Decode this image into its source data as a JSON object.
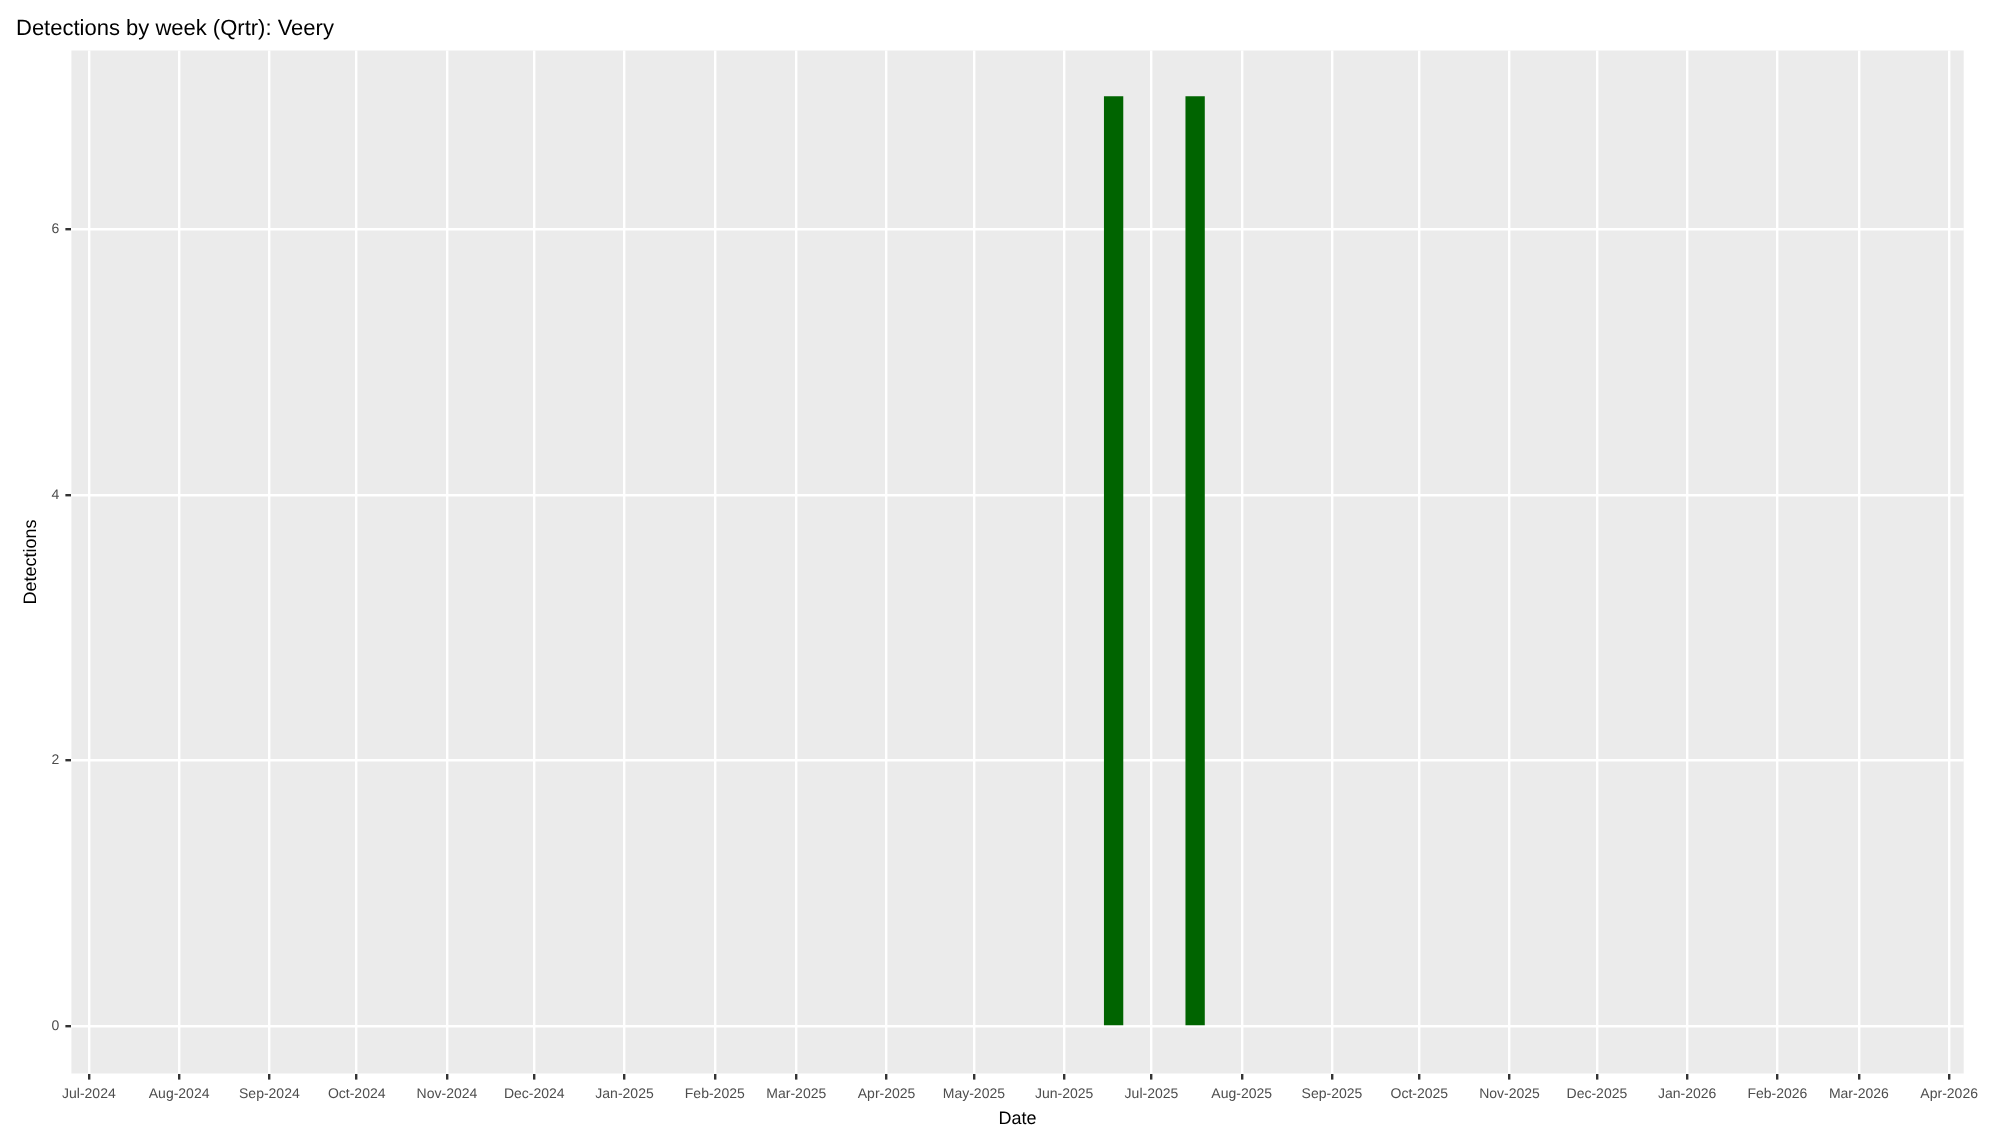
{
  "chart_data": {
    "type": "bar",
    "title": "Detections by week (Qrtr): Veery",
    "xlabel": "Date",
    "ylabel": "Detections",
    "x": [
      "2025-06-18",
      "2025-07-16"
    ],
    "series": [
      {
        "color": "#006400",
        "values": [
          7,
          7
        ]
      }
    ],
    "xlim": [
      "2024-06-25",
      "2026-04-06"
    ],
    "xticks": [
      {
        "value": "2024-07-01",
        "label": "Jul-2024"
      },
      {
        "value": "2024-08-01",
        "label": "Aug-2024"
      },
      {
        "value": "2024-09-01",
        "label": "Sep-2024"
      },
      {
        "value": "2024-10-01",
        "label": "Oct-2024"
      },
      {
        "value": "2024-11-01",
        "label": "Nov-2024"
      },
      {
        "value": "2024-12-01",
        "label": "Dec-2024"
      },
      {
        "value": "2025-01-01",
        "label": "Jan-2025"
      },
      {
        "value": "2025-02-01",
        "label": "Feb-2025"
      },
      {
        "value": "2025-03-01",
        "label": "Mar-2025"
      },
      {
        "value": "2025-04-01",
        "label": "Apr-2025"
      },
      {
        "value": "2025-05-01",
        "label": "May-2025"
      },
      {
        "value": "2025-06-01",
        "label": "Jun-2025"
      },
      {
        "value": "2025-07-01",
        "label": "Jul-2025"
      },
      {
        "value": "2025-08-01",
        "label": "Aug-2025"
      },
      {
        "value": "2025-09-01",
        "label": "Sep-2025"
      },
      {
        "value": "2025-10-01",
        "label": "Oct-2025"
      },
      {
        "value": "2025-11-01",
        "label": "Nov-2025"
      },
      {
        "value": "2025-12-01",
        "label": "Dec-2025"
      },
      {
        "value": "2026-01-01",
        "label": "Jan-2026"
      },
      {
        "value": "2026-02-01",
        "label": "Feb-2026"
      },
      {
        "value": "2026-03-01",
        "label": "Mar-2026"
      },
      {
        "value": "2026-04-01",
        "label": "Apr-2026"
      }
    ],
    "ylim": [
      -0.36,
      7.35
    ],
    "yticks": [
      0,
      2,
      4,
      6
    ],
    "grid": true,
    "legend": false
  }
}
